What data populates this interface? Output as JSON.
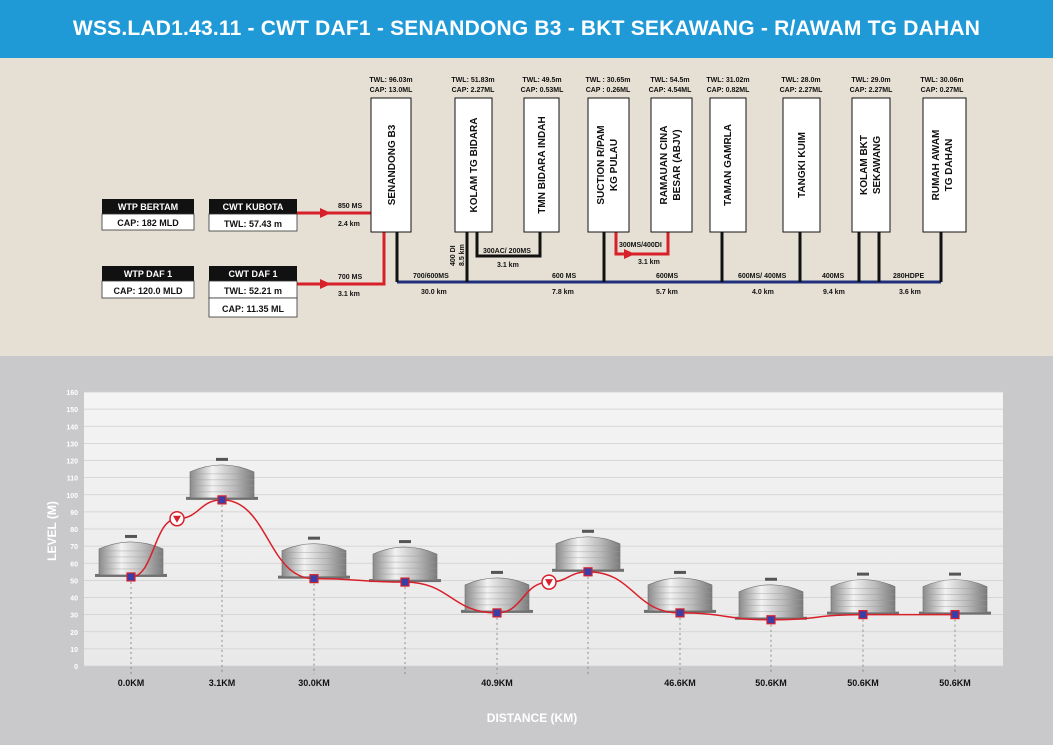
{
  "title": "WSS.LAD1.43.11 - CWT DAF1 - SENANDONG B3 - BKT SEKAWANG - R/AWAM TG DAHAN",
  "colors": {
    "title_bg": "#1f9ad7",
    "network_bg": "#e6e0d4",
    "profile_bg": "#c9c9cb",
    "main_pipe": "#1f2f7a",
    "feed_pipe": "#d8202a",
    "box_header": "#111111"
  },
  "sources": [
    {
      "name": "WTP BERTAM",
      "cap": "CAP: 182 MLD"
    },
    {
      "name": "WTP DAF 1",
      "cap": "CAP: 120.0 MLD"
    }
  ],
  "cwts": [
    {
      "name": "CWT KUBOTA",
      "twl": "TWL: 57.43 m"
    },
    {
      "name": "CWT DAF 1",
      "twl": "TWL: 52.21 m",
      "cap": "CAP: 11.35 ML"
    }
  ],
  "reservoirs": [
    {
      "name": "SENANDONG  B3",
      "twl": "TWL: 96.03m",
      "cap": "CAP: 13.0ML"
    },
    {
      "name": "KOLAM TG BIDARA",
      "twl": "TWL: 51.83m",
      "cap": "CAP: 2.27ML"
    },
    {
      "name": "TMN BIDARA INDAH",
      "twl": "TWL: 49.5m",
      "cap": "CAP: 0.53ML"
    },
    {
      "name": "SUCTION R/PAM KG PULAU",
      "line1": "SUCTION R/PAM",
      "line2": "KG PULAU",
      "twl": "TWL : 30.65m",
      "cap": "CAP : 0.26ML"
    },
    {
      "name": "RAMAUAN CINA BESAR (ABJV)",
      "line1": "RAMAUAN CINA",
      "line2": "BESAR (ABJV)",
      "twl": "TWL: 54.5m",
      "cap": "CAP: 4.54ML"
    },
    {
      "name": "TAMAN GAMRLA",
      "twl": "TWL: 31.02m",
      "cap": "CAP: 0.82ML"
    },
    {
      "name": "TANGKI KUIM",
      "twl": "TWL: 28.0m",
      "cap": "CAP: 2.27ML"
    },
    {
      "name": "KOLAM BKT SEKAWANG",
      "line1": "KOLAM BKT",
      "line2": "SEKAWANG",
      "twl": "TWL: 29.0m",
      "cap": "CAP: 2.27ML"
    },
    {
      "name": "RUMAH AWAM TG DAHAN",
      "line1": "RUMAH AWAM",
      "line2": "TG DAHAN",
      "twl": "TWL: 30.06m",
      "cap": "CAP: 0.27ML"
    }
  ],
  "pipes": {
    "kubota_main": "850 MS",
    "kubota_len": "2.4 km",
    "daf_main": "700 MS",
    "daf_len": "3.1 km",
    "seg1": "700/600MS",
    "seg1_len": "30.0 km",
    "seg2": "600 MS",
    "seg2_len": "7.8 km",
    "seg3": "600MS",
    "seg3_len": "5.7 km",
    "seg4": "600MS/ 400MS",
    "seg4_len": "4.0 km",
    "seg5": "400MS",
    "seg5_len": "9.4 km",
    "seg6": "280HDPE",
    "seg6_len": "3.6 km",
    "bidara_v1": "400 DI",
    "bidara_v2": "8.5 km",
    "bidara_branch": "300AC/ 200MS",
    "bidara_branch_len": "3.1 km",
    "ramauan_branch": "300MS/400DI",
    "ramauan_branch_len": "3.1 km"
  },
  "chart_data": {
    "type": "line",
    "ylabel": "LEVEL (M)",
    "xlabel": "DISTANCE (KM)",
    "ylim": [
      0,
      160
    ],
    "yticks": [
      "160",
      "150",
      "140",
      "130",
      "120",
      "110",
      "100",
      "90",
      "80",
      "70",
      "60",
      "50",
      "40",
      "30",
      "20",
      "10",
      "0"
    ],
    "grid": true,
    "x_labels": [
      "0.0KM",
      "3.1KM",
      "30.0KM",
      "40.9KM",
      "46.6KM",
      "50.6KM",
      "50.6KM",
      "50.6KM"
    ],
    "levels": [
      52,
      97,
      51,
      49,
      31,
      55,
      31,
      27,
      30,
      30
    ],
    "pumps": [
      86,
      49
    ]
  }
}
